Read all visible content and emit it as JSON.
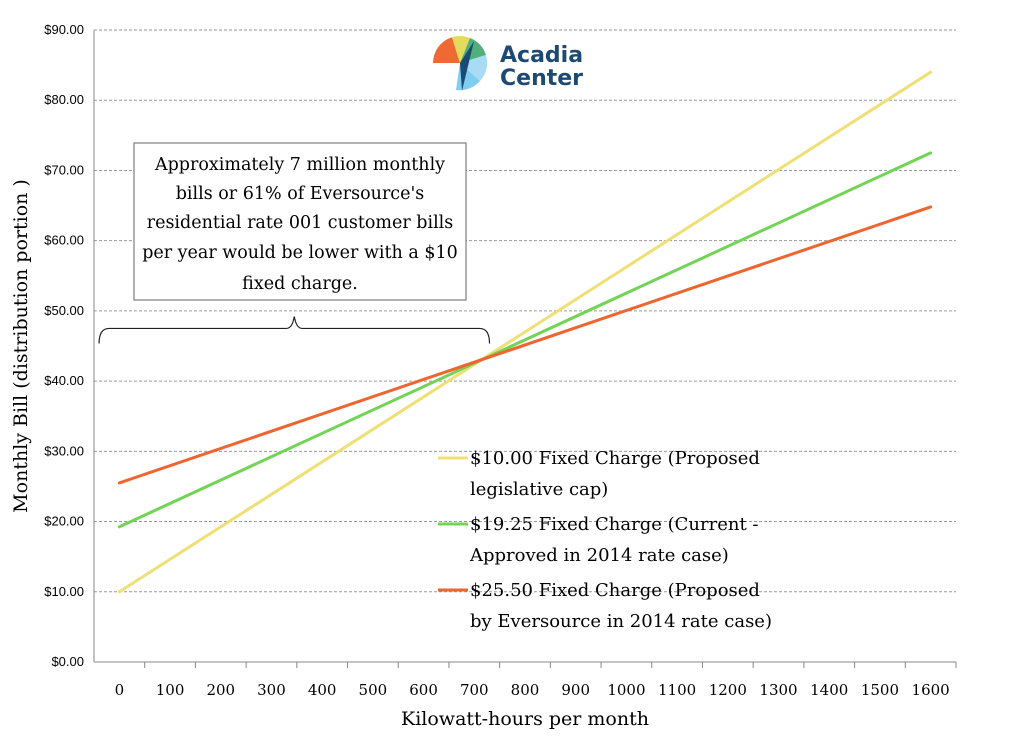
{
  "chart_data": {
    "type": "line",
    "x": [
      0,
      1600
    ],
    "x_ticks": [
      "0",
      "100",
      "200",
      "300",
      "400",
      "500",
      "600",
      "700",
      "800",
      "900",
      "1000",
      "1100",
      "1200",
      "1300",
      "1400",
      "1500",
      "1600"
    ],
    "y_ticks": [
      "$0.00",
      "$10.00",
      "$20.00",
      "$30.00",
      "$40.00",
      "$50.00",
      "$60.00",
      "$70.00",
      "$80.00",
      "$90.00"
    ],
    "xlim": [
      -50,
      1650
    ],
    "ylim": [
      0,
      90
    ],
    "xlabel": "Kilowatt-hours per month",
    "ylabel": "Monthly Bill (distribution portion )",
    "series": [
      {
        "name": "$10.00 Fixed Charge (Proposed legislative cap)",
        "legend_lines": [
          "$10.00 Fixed Charge (Proposed",
          "legislative cap)"
        ],
        "color": "#f0df74",
        "values": [
          10.0,
          84.0
        ]
      },
      {
        "name": "$19.25 Fixed Charge (Current - Approved in 2014 rate case)",
        "legend_lines": [
          "$19.25 Fixed Charge (Current -",
          "Approved in 2014 rate case)"
        ],
        "color": "#72d455",
        "values": [
          19.25,
          72.5
        ]
      },
      {
        "name": "$25.50 Fixed Charge (Proposed by Eversource in 2014 rate case)",
        "legend_lines": [
          "$25.50 Fixed Charge (Proposed",
          "by Eversource in 2014 rate case)"
        ],
        "color": "#ee6530",
        "values": [
          25.5,
          64.8
        ]
      }
    ],
    "annotation": {
      "lines": [
        "Approximately 7 million monthly",
        "bills or 61% of Eversource's",
        "residential rate 001 customer bills",
        "per year would be lower with a $10",
        "fixed charge."
      ],
      "bracket_range": [
        -40,
        730
      ],
      "bracket_value": 47.5
    },
    "grid": true,
    "legend_position": "lower-center"
  },
  "logo": {
    "line1": "Acadia",
    "line2": "Center"
  }
}
